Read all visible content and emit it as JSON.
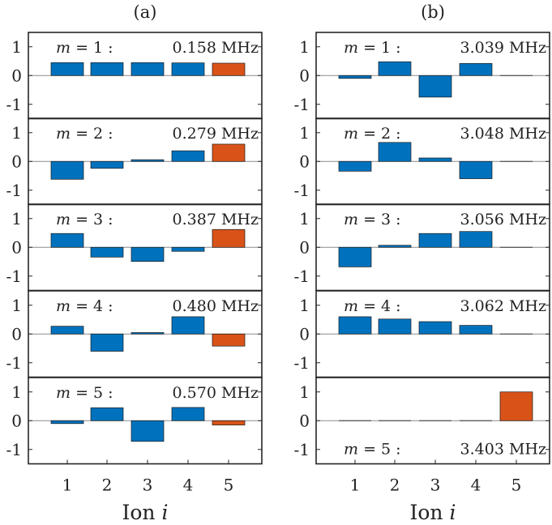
{
  "chart_data": {
    "type": "bar",
    "xlabel_main": "Ion",
    "xlabel_var": "i",
    "categories": [
      "1",
      "2",
      "3",
      "4",
      "5"
    ],
    "ylim": [
      -1.5,
      1.5
    ],
    "yticks": [
      "1",
      "0",
      "-1"
    ],
    "colors": {
      "blue": "#0072BD",
      "orange": "#D95319"
    },
    "panels": [
      {
        "label": "(a)",
        "subplots": [
          {
            "mode": "m = 1 :",
            "freq": "0.158 MHz",
            "values": [
              0.45,
              0.45,
              0.45,
              0.44,
              0.43
            ],
            "colors": [
              "blue",
              "blue",
              "blue",
              "blue",
              "orange"
            ],
            "label_pos": "top"
          },
          {
            "mode": "m = 2 :",
            "freq": "0.279 MHz",
            "values": [
              -0.62,
              -0.24,
              0.06,
              0.37,
              0.6
            ],
            "colors": [
              "blue",
              "blue",
              "blue",
              "blue",
              "orange"
            ],
            "label_pos": "top"
          },
          {
            "mode": "m = 3 :",
            "freq": "0.387 MHz",
            "values": [
              0.48,
              -0.34,
              -0.49,
              -0.14,
              0.62
            ],
            "colors": [
              "blue",
              "blue",
              "blue",
              "blue",
              "orange"
            ],
            "label_pos": "top"
          },
          {
            "mode": "m = 4 :",
            "freq": "0.480 MHz",
            "values": [
              0.27,
              -0.6,
              0.05,
              0.6,
              -0.42
            ],
            "colors": [
              "blue",
              "blue",
              "blue",
              "blue",
              "orange"
            ],
            "label_pos": "top"
          },
          {
            "mode": "m = 5 :",
            "freq": "0.570 MHz",
            "values": [
              -0.1,
              0.45,
              -0.72,
              0.46,
              -0.15
            ],
            "colors": [
              "blue",
              "blue",
              "blue",
              "blue",
              "orange"
            ],
            "label_pos": "top"
          }
        ]
      },
      {
        "label": "(b)",
        "subplots": [
          {
            "mode": "m = 1 :",
            "freq": "3.039 MHz",
            "values": [
              -0.1,
              0.48,
              -0.75,
              0.42,
              0.0
            ],
            "colors": [
              "blue",
              "blue",
              "blue",
              "blue",
              "orange"
            ],
            "label_pos": "top"
          },
          {
            "mode": "m = 2 :",
            "freq": "3.048 MHz",
            "values": [
              -0.34,
              0.66,
              0.12,
              -0.6,
              0.0
            ],
            "colors": [
              "blue",
              "blue",
              "blue",
              "blue",
              "orange"
            ],
            "label_pos": "top"
          },
          {
            "mode": "m = 3 :",
            "freq": "3.056 MHz",
            "values": [
              -0.68,
              0.07,
              0.48,
              0.55,
              0.0
            ],
            "colors": [
              "blue",
              "blue",
              "blue",
              "blue",
              "orange"
            ],
            "label_pos": "top"
          },
          {
            "mode": "m = 4 :",
            "freq": "3.062 MHz",
            "values": [
              0.6,
              0.52,
              0.43,
              0.3,
              0.0
            ],
            "colors": [
              "blue",
              "blue",
              "blue",
              "blue",
              "orange"
            ],
            "label_pos": "top"
          },
          {
            "mode": "m = 5 :",
            "freq": "3.403 MHz",
            "values": [
              0.0,
              0.0,
              0.0,
              0.0,
              1.0
            ],
            "colors": [
              "blue",
              "blue",
              "blue",
              "blue",
              "orange"
            ],
            "label_pos": "bottom"
          }
        ]
      }
    ]
  }
}
